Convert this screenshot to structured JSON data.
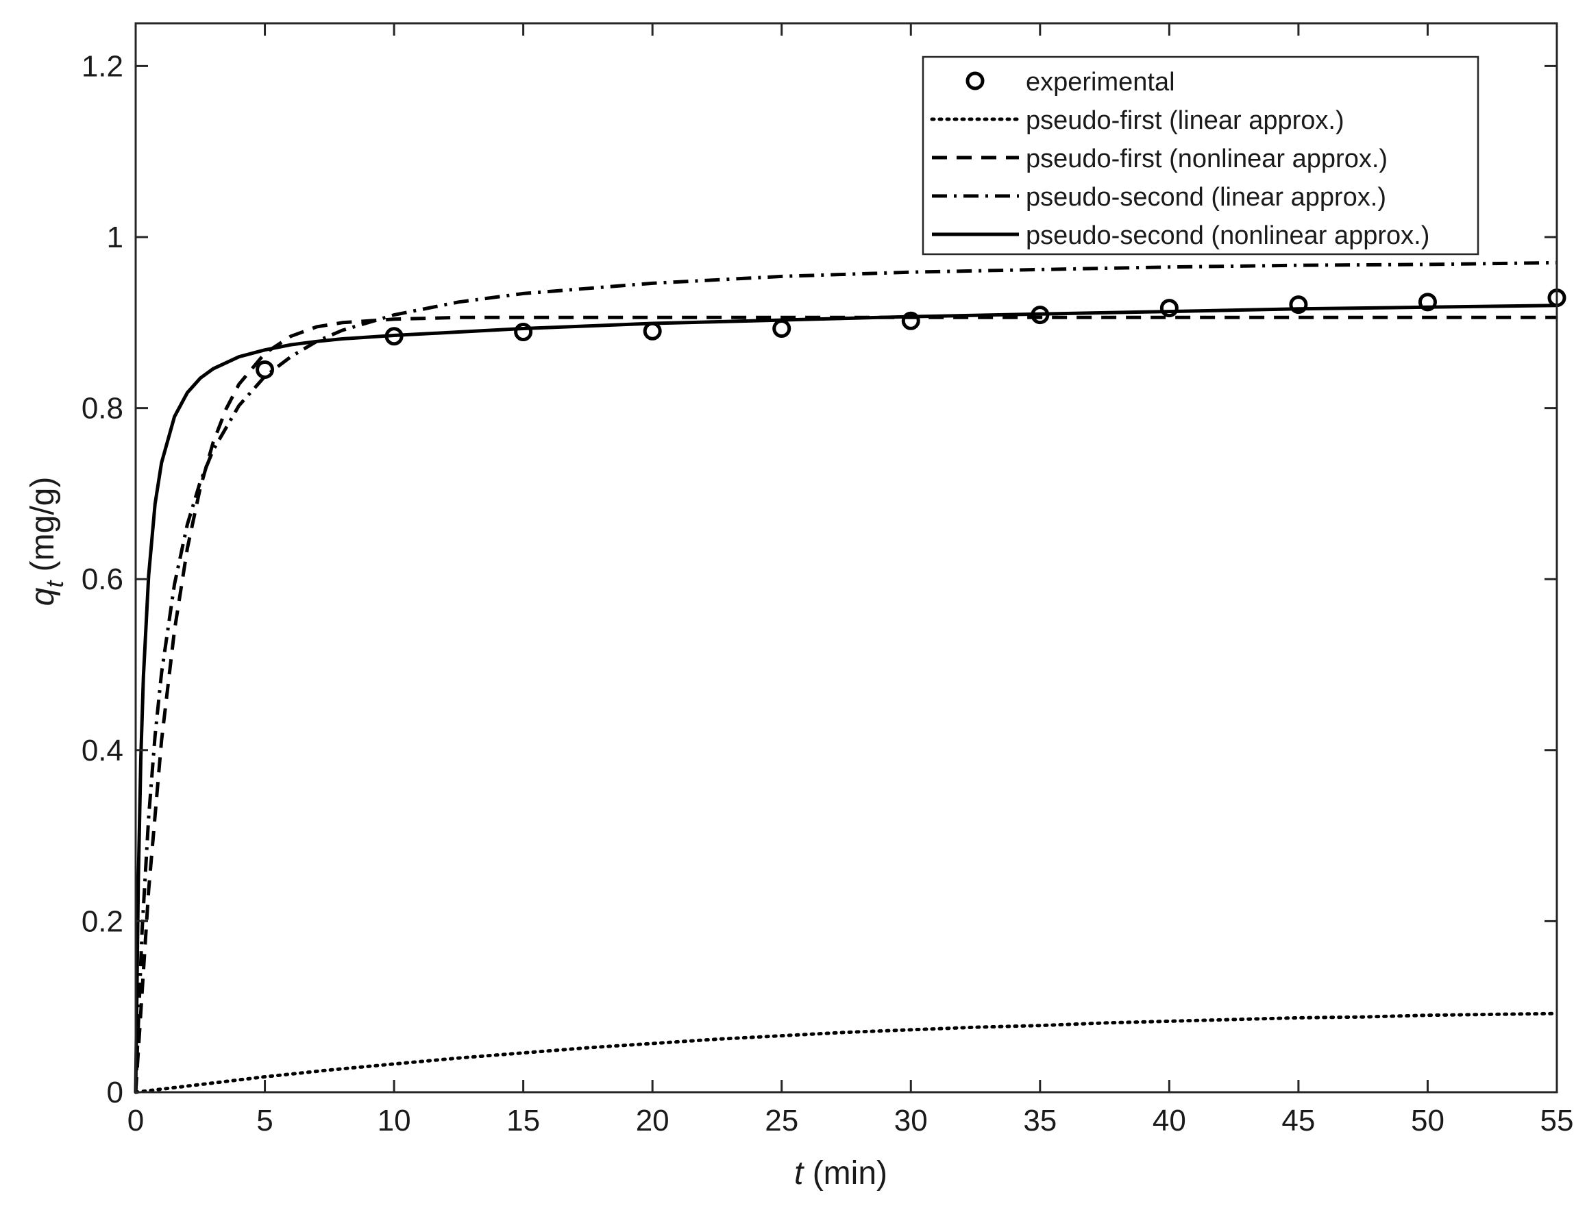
{
  "chart_data": {
    "type": "line",
    "title": "",
    "xlabel": {
      "var": "t",
      "unit": "(min)"
    },
    "ylabel": {
      "var": "q",
      "sub": "t",
      "unit": "(mg/g)"
    },
    "xlim": [
      0,
      55
    ],
    "ylim": [
      0,
      1.25
    ],
    "xticks": [
      0,
      5,
      10,
      15,
      20,
      25,
      30,
      35,
      40,
      45,
      50,
      55
    ],
    "yticks": [
      0,
      0.2,
      0.4,
      0.6,
      0.8,
      1,
      1.2
    ],
    "xtick_labels": [
      "0",
      "5",
      "10",
      "15",
      "20",
      "25",
      "30",
      "35",
      "40",
      "45",
      "50",
      "55"
    ],
    "ytick_labels": [
      "0",
      "0.2",
      "0.4",
      "0.6",
      "0.8",
      "1",
      "1.2"
    ],
    "grid": false,
    "legend_position": "top-right",
    "color": "#000000",
    "scatter": {
      "name": "experimental",
      "x": [
        5,
        10,
        15,
        20,
        25,
        30,
        35,
        40,
        45,
        50,
        55
      ],
      "y": [
        0.845,
        0.884,
        0.889,
        0.89,
        0.893,
        0.902,
        0.909,
        0.917,
        0.921,
        0.924,
        0.929
      ]
    },
    "series": [
      {
        "name": "pseudo-first (linear approx.)",
        "style": "dotted",
        "x": [
          0,
          2.5,
          5,
          7.5,
          10,
          12.5,
          15,
          17.5,
          20,
          22.5,
          25,
          27.5,
          30,
          32.5,
          35,
          37.5,
          40,
          42.5,
          45,
          47.5,
          50,
          52.5,
          55
        ],
        "y": [
          0,
          0.009,
          0.018,
          0.026,
          0.033,
          0.04,
          0.046,
          0.052,
          0.057,
          0.062,
          0.066,
          0.07,
          0.073,
          0.076,
          0.078,
          0.081,
          0.083,
          0.085,
          0.087,
          0.088,
          0.09,
          0.091,
          0.092
        ]
      },
      {
        "name": "pseudo-first (nonlinear approx.)",
        "style": "dashed",
        "x": [
          0,
          0.5,
          1,
          1.5,
          2,
          2.5,
          3,
          3.5,
          4,
          5,
          6,
          7,
          8,
          10,
          12.5,
          15,
          20,
          25,
          30,
          35,
          40,
          45,
          50,
          55
        ],
        "y": [
          0,
          0.236,
          0.411,
          0.54,
          0.636,
          0.707,
          0.76,
          0.799,
          0.828,
          0.864,
          0.884,
          0.895,
          0.9,
          0.904,
          0.906,
          0.906,
          0.906,
          0.906,
          0.906,
          0.906,
          0.906,
          0.906,
          0.906,
          0.906
        ]
      },
      {
        "name": "pseudo-second (linear approx.)",
        "style": "dashdot",
        "x": [
          0,
          0.25,
          0.5,
          0.75,
          1,
          1.5,
          2,
          2.5,
          3,
          4,
          5,
          6,
          7,
          8,
          10,
          12.5,
          15,
          20,
          25,
          30,
          35,
          40,
          45,
          50,
          55
        ],
        "y": [
          0,
          0.19,
          0.321,
          0.417,
          0.49,
          0.594,
          0.664,
          0.714,
          0.751,
          0.803,
          0.837,
          0.86,
          0.878,
          0.891,
          0.909,
          0.924,
          0.934,
          0.946,
          0.954,
          0.959,
          0.962,
          0.965,
          0.967,
          0.968,
          0.97
        ]
      },
      {
        "name": "pseudo-second (nonlinear approx.)",
        "style": "solid",
        "x": [
          0,
          0.1,
          0.2,
          0.3,
          0.5,
          0.75,
          1,
          1.5,
          2,
          2.5,
          3,
          4,
          5,
          6,
          7,
          8,
          10,
          12.5,
          15,
          20,
          25,
          30,
          35,
          40,
          45,
          50,
          55
        ],
        "y": [
          0,
          0.245,
          0.39,
          0.486,
          0.604,
          0.688,
          0.736,
          0.79,
          0.818,
          0.835,
          0.846,
          0.86,
          0.868,
          0.874,
          0.878,
          0.881,
          0.885,
          0.889,
          0.893,
          0.899,
          0.903,
          0.907,
          0.91,
          0.913,
          0.916,
          0.918,
          0.92
        ]
      }
    ]
  }
}
